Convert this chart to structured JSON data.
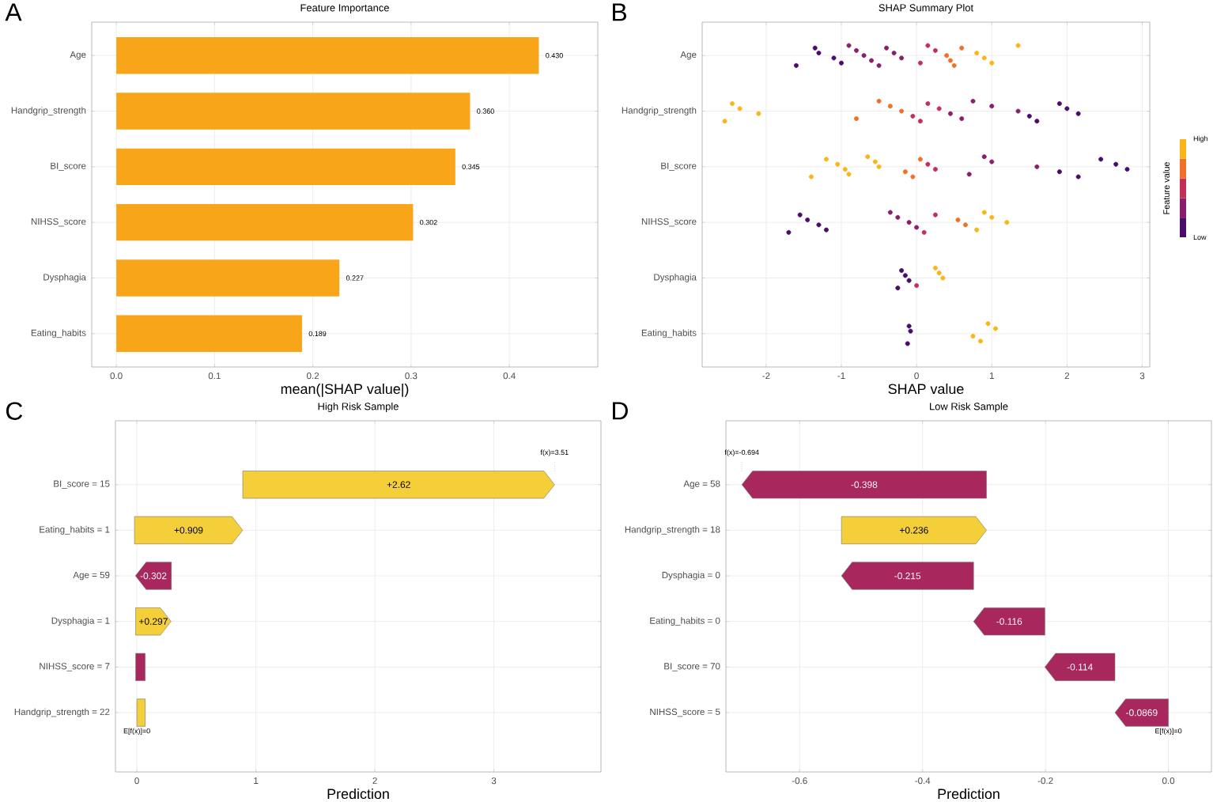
{
  "chart_data": [
    {
      "type": "bar",
      "orientation": "horizontal",
      "title": "Feature Importance",
      "xlabel": "mean(|SHAP value|)",
      "annotations": [
        "A"
      ],
      "categories": [
        "Age",
        "Handgrip_strength",
        "BI_score",
        "NIHSS_score",
        "Dysphagia",
        "Eating_habits"
      ],
      "values": [
        0.43,
        0.36,
        0.345,
        0.302,
        0.227,
        0.189
      ],
      "value_labels": [
        "0.430",
        "0.360",
        "0.345",
        "0.302",
        "0.227",
        "0.189"
      ],
      "color": "#f9a51a",
      "xlim": [
        -0.025,
        0.49
      ],
      "xticks": [
        {
          "value": 0,
          "label": "0.0"
        },
        {
          "value": 0.1,
          "label": "0.1"
        },
        {
          "value": 0.2,
          "label": "0.2"
        },
        {
          "value": 0.3,
          "label": "0.3"
        },
        {
          "value": 0.4,
          "label": "0.4"
        }
      ],
      "grid": true
    },
    {
      "type": "scatter",
      "orientation": "horizontal",
      "title": "SHAP Summary Plot",
      "xlabel": "SHAP value",
      "clabel": "Feature value",
      "annotations": [
        "B",
        "High",
        "Low"
      ],
      "categories": [
        "Age",
        "Handgrip_strength",
        "BI_score",
        "NIHSS_score",
        "Dysphagia",
        "Eating_habits"
      ],
      "series": [
        {
          "x": [
            "Age",
            "Age",
            "Age",
            "Age",
            "Age",
            "Age",
            "Age",
            "Age",
            "Age",
            "Age",
            "Age",
            "Age",
            "Age",
            "Age",
            "Age",
            "Age",
            "Age",
            "Age",
            "Age",
            "Age",
            "Age",
            "Age",
            "Age",
            "Age"
          ],
          "values": [
            -1.6,
            -1.35,
            -1.3,
            -1.1,
            -1.0,
            -0.9,
            -0.8,
            -0.7,
            -0.6,
            -0.5,
            -0.4,
            -0.3,
            -0.2,
            0.05,
            0.15,
            0.25,
            0.4,
            0.45,
            0.5,
            0.6,
            0.8,
            0.9,
            1.0,
            1.35
          ],
          "colors": [
            "#4a0c6b",
            "#4a0c6b",
            "#4a0c6b",
            "#4a0c6b",
            "#4a0c6b",
            "#8a1e6a",
            "#8a1e6a",
            "#8a1e6a",
            "#8a1e6a",
            "#8a1e6a",
            "#8a1e6a",
            "#8a1e6a",
            "#8a1e6a",
            "#c2305a",
            "#c2305a",
            "#c2305a",
            "#f0702a",
            "#f0702a",
            "#f0702a",
            "#f0702a",
            "#fcb519",
            "#fcb519",
            "#fcb519",
            "#fcb519"
          ]
        },
        {
          "x": [
            "Handgrip_strength",
            "Handgrip_strength",
            "Handgrip_strength",
            "Handgrip_strength",
            "Handgrip_strength",
            "Handgrip_strength",
            "Handgrip_strength",
            "Handgrip_strength",
            "Handgrip_strength",
            "Handgrip_strength",
            "Handgrip_strength",
            "Handgrip_strength",
            "Handgrip_strength",
            "Handgrip_strength",
            "Handgrip_strength",
            "Handgrip_strength",
            "Handgrip_strength",
            "Handgrip_strength",
            "Handgrip_strength",
            "Handgrip_strength",
            "Handgrip_strength",
            "Handgrip_strength"
          ],
          "values": [
            -2.55,
            -2.45,
            -2.35,
            -2.1,
            -0.8,
            -0.5,
            -0.35,
            -0.2,
            -0.05,
            0.05,
            0.15,
            0.3,
            0.45,
            0.6,
            0.75,
            1.0,
            1.35,
            1.5,
            1.6,
            1.9,
            2.0,
            2.15
          ],
          "colors": [
            "#fcb519",
            "#fcb519",
            "#fcb519",
            "#fcb519",
            "#f0702a",
            "#f0702a",
            "#f0702a",
            "#f0702a",
            "#c2305a",
            "#c2305a",
            "#c2305a",
            "#c2305a",
            "#8a1e6a",
            "#8a1e6a",
            "#8a1e6a",
            "#8a1e6a",
            "#8a1e6a",
            "#4a0c6b",
            "#4a0c6b",
            "#4a0c6b",
            "#4a0c6b",
            "#4a0c6b"
          ]
        },
        {
          "x": [
            "BI_score",
            "BI_score",
            "BI_score",
            "BI_score",
            "BI_score",
            "BI_score",
            "BI_score",
            "BI_score",
            "BI_score",
            "BI_score",
            "BI_score",
            "BI_score",
            "BI_score",
            "BI_score",
            "BI_score",
            "BI_score",
            "BI_score",
            "BI_score",
            "BI_score",
            "BI_score",
            "BI_score",
            "BI_score"
          ],
          "values": [
            -1.4,
            -1.2,
            -1.05,
            -0.95,
            -0.9,
            -0.65,
            -0.55,
            -0.5,
            -0.15,
            -0.05,
            0.05,
            0.15,
            0.25,
            0.7,
            0.9,
            1.0,
            1.6,
            1.9,
            2.15,
            2.45,
            2.65,
            2.8
          ],
          "colors": [
            "#fcb519",
            "#fcb519",
            "#fcb519",
            "#fcb519",
            "#fcb519",
            "#fcb519",
            "#fcb519",
            "#fcb519",
            "#f0702a",
            "#f0702a",
            "#f0702a",
            "#c2305a",
            "#c2305a",
            "#8a1e6a",
            "#8a1e6a",
            "#8a1e6a",
            "#8a1e6a",
            "#4a0c6b",
            "#4a0c6b",
            "#4a0c6b",
            "#4a0c6b",
            "#4a0c6b"
          ]
        },
        {
          "x": [
            "NIHSS_score",
            "NIHSS_score",
            "NIHSS_score",
            "NIHSS_score",
            "NIHSS_score",
            "NIHSS_score",
            "NIHSS_score",
            "NIHSS_score",
            "NIHSS_score",
            "NIHSS_score",
            "NIHSS_score",
            "NIHSS_score",
            "NIHSS_score",
            "NIHSS_score",
            "NIHSS_score",
            "NIHSS_score",
            "NIHSS_score"
          ],
          "values": [
            -1.7,
            -1.55,
            -1.45,
            -1.3,
            -1.2,
            -0.35,
            -0.25,
            -0.1,
            0.0,
            0.1,
            0.25,
            0.55,
            0.65,
            0.8,
            0.9,
            1.0,
            1.2
          ],
          "colors": [
            "#4a0c6b",
            "#4a0c6b",
            "#4a0c6b",
            "#4a0c6b",
            "#4a0c6b",
            "#8a1e6a",
            "#8a1e6a",
            "#8a1e6a",
            "#8a1e6a",
            "#c2305a",
            "#c2305a",
            "#f0702a",
            "#f0702a",
            "#fcb519",
            "#fcb519",
            "#fcb519",
            "#fcb519"
          ]
        },
        {
          "x": [
            "Dysphagia",
            "Dysphagia",
            "Dysphagia",
            "Dysphagia",
            "Dysphagia",
            "Dysphagia",
            "Dysphagia",
            "Dysphagia"
          ],
          "values": [
            -0.25,
            -0.2,
            -0.15,
            -0.1,
            0.0,
            0.25,
            0.3,
            0.35
          ],
          "colors": [
            "#4a0c6b",
            "#4a0c6b",
            "#4a0c6b",
            "#4a0c6b",
            "#c2305a",
            "#fcb519",
            "#fcb519",
            "#fcb519"
          ]
        },
        {
          "x": [
            "Eating_habits",
            "Eating_habits",
            "Eating_habits",
            "Eating_habits",
            "Eating_habits",
            "Eating_habits",
            "Eating_habits"
          ],
          "values": [
            -0.12,
            -0.1,
            -0.08,
            0.75,
            0.85,
            0.95,
            1.05
          ],
          "colors": [
            "#4a0c6b",
            "#4a0c6b",
            "#4a0c6b",
            "#fcb519",
            "#fcb519",
            "#fcb519",
            "#fcb519"
          ]
        }
      ],
      "xlim": [
        -2.85,
        3.1
      ],
      "xticks": [
        -2,
        -1,
        0,
        1,
        2,
        3
      ],
      "grid": true,
      "marker": "circle"
    },
    {
      "type": "bar",
      "orientation": "horizontal",
      "title": "High Risk Sample",
      "xlabel": "Prediction",
      "annotations": [
        "C",
        {
          "text": "f(x)=3.51",
          "x": 3.51,
          "y": "BI_score = 15"
        },
        {
          "text": "E[f(x)]=0",
          "x": 0,
          "y": "Handgrip_strength = 22"
        }
      ],
      "categories": [
        "BI_score = 15",
        "Eating_habits = 1",
        "Age = 59",
        "Dysphagia = 1",
        "NIHSS_score = 7",
        "Handgrip_strength = 22"
      ],
      "values": [
        2.62,
        0.909,
        -0.302,
        0.297,
        -0.08,
        0.07
      ],
      "base": [
        0.89,
        -0.02,
        0.29,
        -0.01,
        0.07,
        0
      ],
      "value_labels": [
        "+2.62",
        "+0.909",
        "-0.302",
        "+0.297",
        null,
        null
      ],
      "colors": [
        "#f5cf3a",
        "#f5cf3a",
        "#a8285e",
        "#f5cf3a",
        "#a8285e",
        "#f5cf3a"
      ],
      "xlim": [
        -0.18,
        3.9
      ],
      "xticks": [
        0,
        1,
        2,
        3
      ],
      "grid": true
    },
    {
      "type": "bar",
      "orientation": "horizontal",
      "title": "Low Risk Sample",
      "xlabel": "Prediction",
      "annotations": [
        "D",
        {
          "text": "f(x)=-0.694",
          "x": -0.694,
          "y": "Age = 58"
        },
        {
          "text": "E[f(x)]=0",
          "x": 0,
          "y": "NIHSS_score = 5"
        }
      ],
      "categories": [
        "Age = 58",
        "Handgrip_strength = 18",
        "Dysphagia = 0",
        "Eating_habits = 0",
        "BI_score = 70",
        "NIHSS_score = 5"
      ],
      "values": [
        -0.398,
        0.236,
        -0.215,
        -0.116,
        -0.114,
        -0.0869
      ],
      "base": [
        -0.296,
        -0.532,
        -0.317,
        -0.201,
        -0.087,
        0
      ],
      "value_labels": [
        "-0.398",
        "+0.236",
        "-0.215",
        "-0.116",
        "-0.114",
        "-0.0869"
      ],
      "colors": [
        "#a8285e",
        "#f5cf3a",
        "#a8285e",
        "#a8285e",
        "#a8285e",
        "#a8285e"
      ],
      "xlim": [
        -0.72,
        0.07
      ],
      "xticks": [
        {
          "value": -0.6,
          "label": "-0.6"
        },
        {
          "value": -0.4,
          "label": "-0.4"
        },
        {
          "value": -0.2,
          "label": "-0.2"
        },
        {
          "value": 0,
          "label": "0.0"
        }
      ],
      "grid": true
    }
  ]
}
